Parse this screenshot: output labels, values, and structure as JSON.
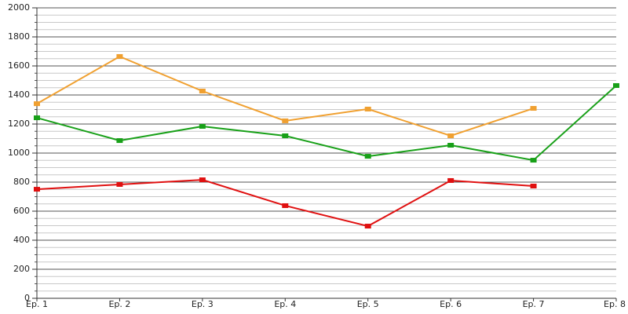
{
  "chart_data": {
    "type": "line",
    "categories": [
      "Ep. 1",
      "Ep. 2",
      "Ep. 3",
      "Ep. 4",
      "Ep. 5",
      "Ep. 6",
      "Ep. 7",
      "Ep. 8"
    ],
    "series": [
      {
        "color": "#f0a030",
        "values": [
          1340,
          1665,
          1427,
          1222,
          1303,
          1119,
          1308,
          null
        ]
      },
      {
        "color": "#18a018",
        "values": [
          1243,
          1086,
          1184,
          1119,
          978,
          1054,
          951,
          1465
        ]
      },
      {
        "color": "#e01010",
        "values": [
          751,
          784,
          816,
          638,
          497,
          811,
          773,
          null
        ]
      }
    ],
    "ylim": [
      0,
      2000
    ],
    "yticks": [
      0,
      200,
      400,
      600,
      800,
      1000,
      1200,
      1400,
      1600,
      1800,
      2000
    ],
    "grid": true,
    "minor_grid_divisions": 4
  }
}
